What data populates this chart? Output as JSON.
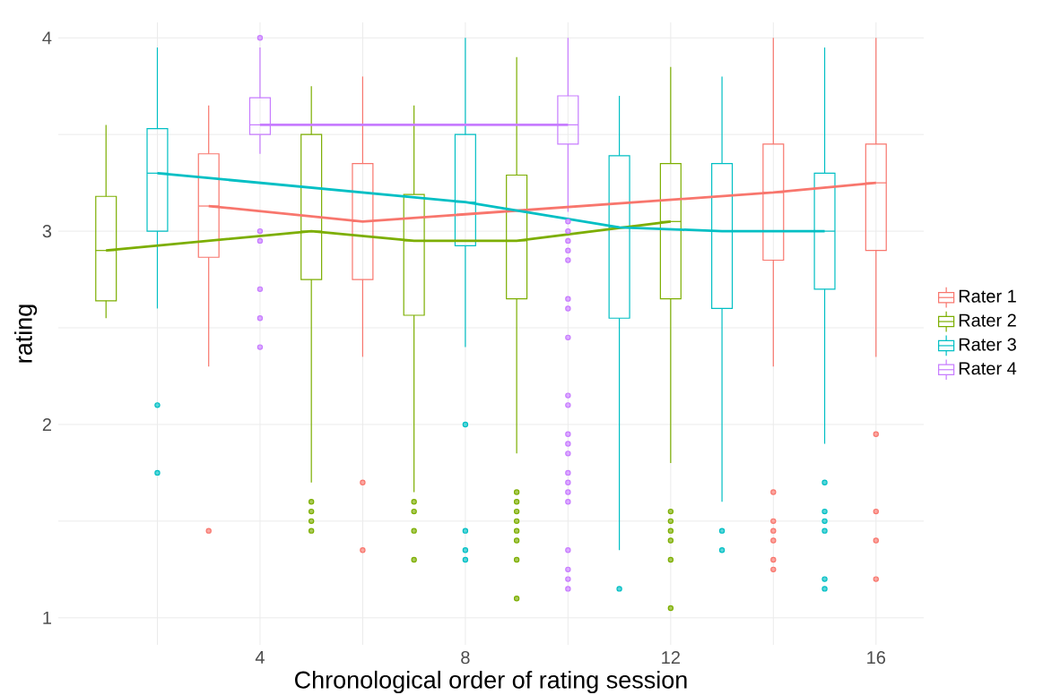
{
  "chart_data": {
    "type": "box",
    "xlabel": "Chronological order of rating session",
    "ylabel": "rating",
    "xlim": [
      0.07,
      16.93
    ],
    "ylim": [
      0.86,
      4.08
    ],
    "xticks": [
      {
        "value": 2,
        "label": null
      },
      4,
      {
        "value": 6,
        "label": null
      },
      8,
      {
        "value": 10,
        "label": null
      },
      12,
      {
        "value": 14,
        "label": null
      },
      16
    ],
    "yticks": [
      1,
      {
        "value": 1.5,
        "label": null
      },
      2,
      {
        "value": 2.5,
        "label": null
      },
      3,
      {
        "value": 3.5,
        "label": null
      },
      4
    ],
    "grid": true,
    "legend": "right",
    "series": [
      {
        "name": "Rater 1",
        "color": "#f8766d",
        "x": [
          3,
          6,
          14,
          16
        ],
        "boxes": [
          {
            "low": 2.3,
            "q1": 2.865,
            "median": 3.13,
            "q3": 3.4,
            "high": 3.65,
            "outliers": [
              1.45
            ]
          },
          {
            "low": 2.35,
            "q1": 2.75,
            "median": 3.05,
            "q3": 3.35,
            "high": 3.8,
            "outliers": [
              1.7,
              1.35
            ]
          },
          {
            "low": 2.3,
            "q1": 2.85,
            "median": 3.2,
            "q3": 3.45,
            "high": 4.0,
            "outliers": [
              1.65,
              1.5,
              1.45,
              1.4,
              1.3,
              1.25
            ]
          },
          {
            "low": 2.35,
            "q1": 2.9,
            "median": 3.25,
            "q3": 3.45,
            "high": 4.0,
            "outliers": [
              1.95,
              1.55,
              1.4,
              1.2
            ]
          }
        ]
      },
      {
        "name": "Rater 2",
        "color": "#7cae00",
        "x": [
          1,
          5,
          7,
          9,
          12
        ],
        "boxes": [
          {
            "low": 2.55,
            "q1": 2.64,
            "median": 2.9,
            "q3": 3.18,
            "high": 3.55
          },
          {
            "low": 1.7,
            "q1": 2.75,
            "median": 3.0,
            "q3": 3.5,
            "high": 3.75,
            "outliers": [
              1.6,
              1.55,
              1.5,
              1.45
            ]
          },
          {
            "low": 1.65,
            "q1": 2.565,
            "median": 2.95,
            "q3": 3.19,
            "high": 3.65,
            "outliers": [
              1.6,
              1.55,
              1.45,
              1.3
            ]
          },
          {
            "low": 1.85,
            "q1": 2.65,
            "median": 2.95,
            "q3": 3.29,
            "high": 3.9,
            "outliers": [
              1.65,
              1.6,
              1.55,
              1.5,
              1.45,
              1.4,
              1.3,
              1.1
            ]
          },
          {
            "low": 1.8,
            "q1": 2.65,
            "median": 3.05,
            "q3": 3.35,
            "high": 3.85,
            "outliers": [
              1.55,
              1.5,
              1.45,
              1.4,
              1.3,
              1.05
            ]
          }
        ]
      },
      {
        "name": "Rater 3",
        "color": "#00bfc4",
        "x": [
          2,
          8,
          11,
          13,
          15
        ],
        "boxes": [
          {
            "low": 2.6,
            "q1": 3.0,
            "median": 3.3,
            "q3": 3.53,
            "high": 3.95,
            "outliers": [
              2.1,
              1.75
            ]
          },
          {
            "low": 2.4,
            "q1": 2.925,
            "median": 3.15,
            "q3": 3.5,
            "high": 4.0,
            "outliers": [
              2.0,
              1.45,
              1.35,
              1.3
            ]
          },
          {
            "low": 1.35,
            "q1": 2.55,
            "median": 3.02,
            "q3": 3.39,
            "high": 3.7,
            "outliers": [
              1.15
            ]
          },
          {
            "low": 1.6,
            "q1": 2.6,
            "median": 3.0,
            "q3": 3.35,
            "high": 3.8,
            "outliers": [
              1.45,
              1.35
            ]
          },
          {
            "low": 1.9,
            "q1": 2.7,
            "median": 3.0,
            "q3": 3.3,
            "high": 3.95,
            "outliers": [
              1.7,
              1.55,
              1.5,
              1.45,
              1.2,
              1.15
            ]
          }
        ]
      },
      {
        "name": "Rater 4",
        "color": "#c77cff",
        "x": [
          4,
          10
        ],
        "boxes": [
          {
            "low": 3.4,
            "q1": 3.5,
            "median": 3.55,
            "q3": 3.69,
            "high": 3.95,
            "outliers": [
              4.0,
              3.0,
              2.95,
              2.7,
              2.55,
              2.4
            ]
          },
          {
            "low": 3.1,
            "q1": 3.45,
            "median": 3.55,
            "q3": 3.7,
            "high": 4.0,
            "outliers": [
              3.05,
              3.0,
              2.95,
              2.9,
              2.85,
              2.65,
              2.6,
              2.45,
              2.15,
              2.1,
              1.95,
              1.9,
              1.85,
              1.75,
              1.7,
              1.65,
              1.6,
              1.35,
              1.25,
              1.2,
              1.15
            ]
          }
        ]
      },
      {
        "type": "line",
        "color": "#f8766d",
        "x": [
          3,
          6,
          14,
          16
        ],
        "values": [
          3.13,
          3.05,
          3.2,
          3.25
        ]
      },
      {
        "type": "line",
        "color": "#7cae00",
        "x": [
          1,
          5,
          7,
          9,
          12
        ],
        "values": [
          2.9,
          3.0,
          2.95,
          2.95,
          3.05
        ]
      },
      {
        "type": "line",
        "color": "#00bfc4",
        "x": [
          2,
          8,
          11,
          13,
          15
        ],
        "values": [
          3.3,
          3.15,
          3.02,
          3.0,
          3.0
        ]
      },
      {
        "type": "line",
        "color": "#c77cff",
        "x": [
          4,
          10
        ],
        "values": [
          3.55,
          3.55
        ]
      }
    ]
  }
}
